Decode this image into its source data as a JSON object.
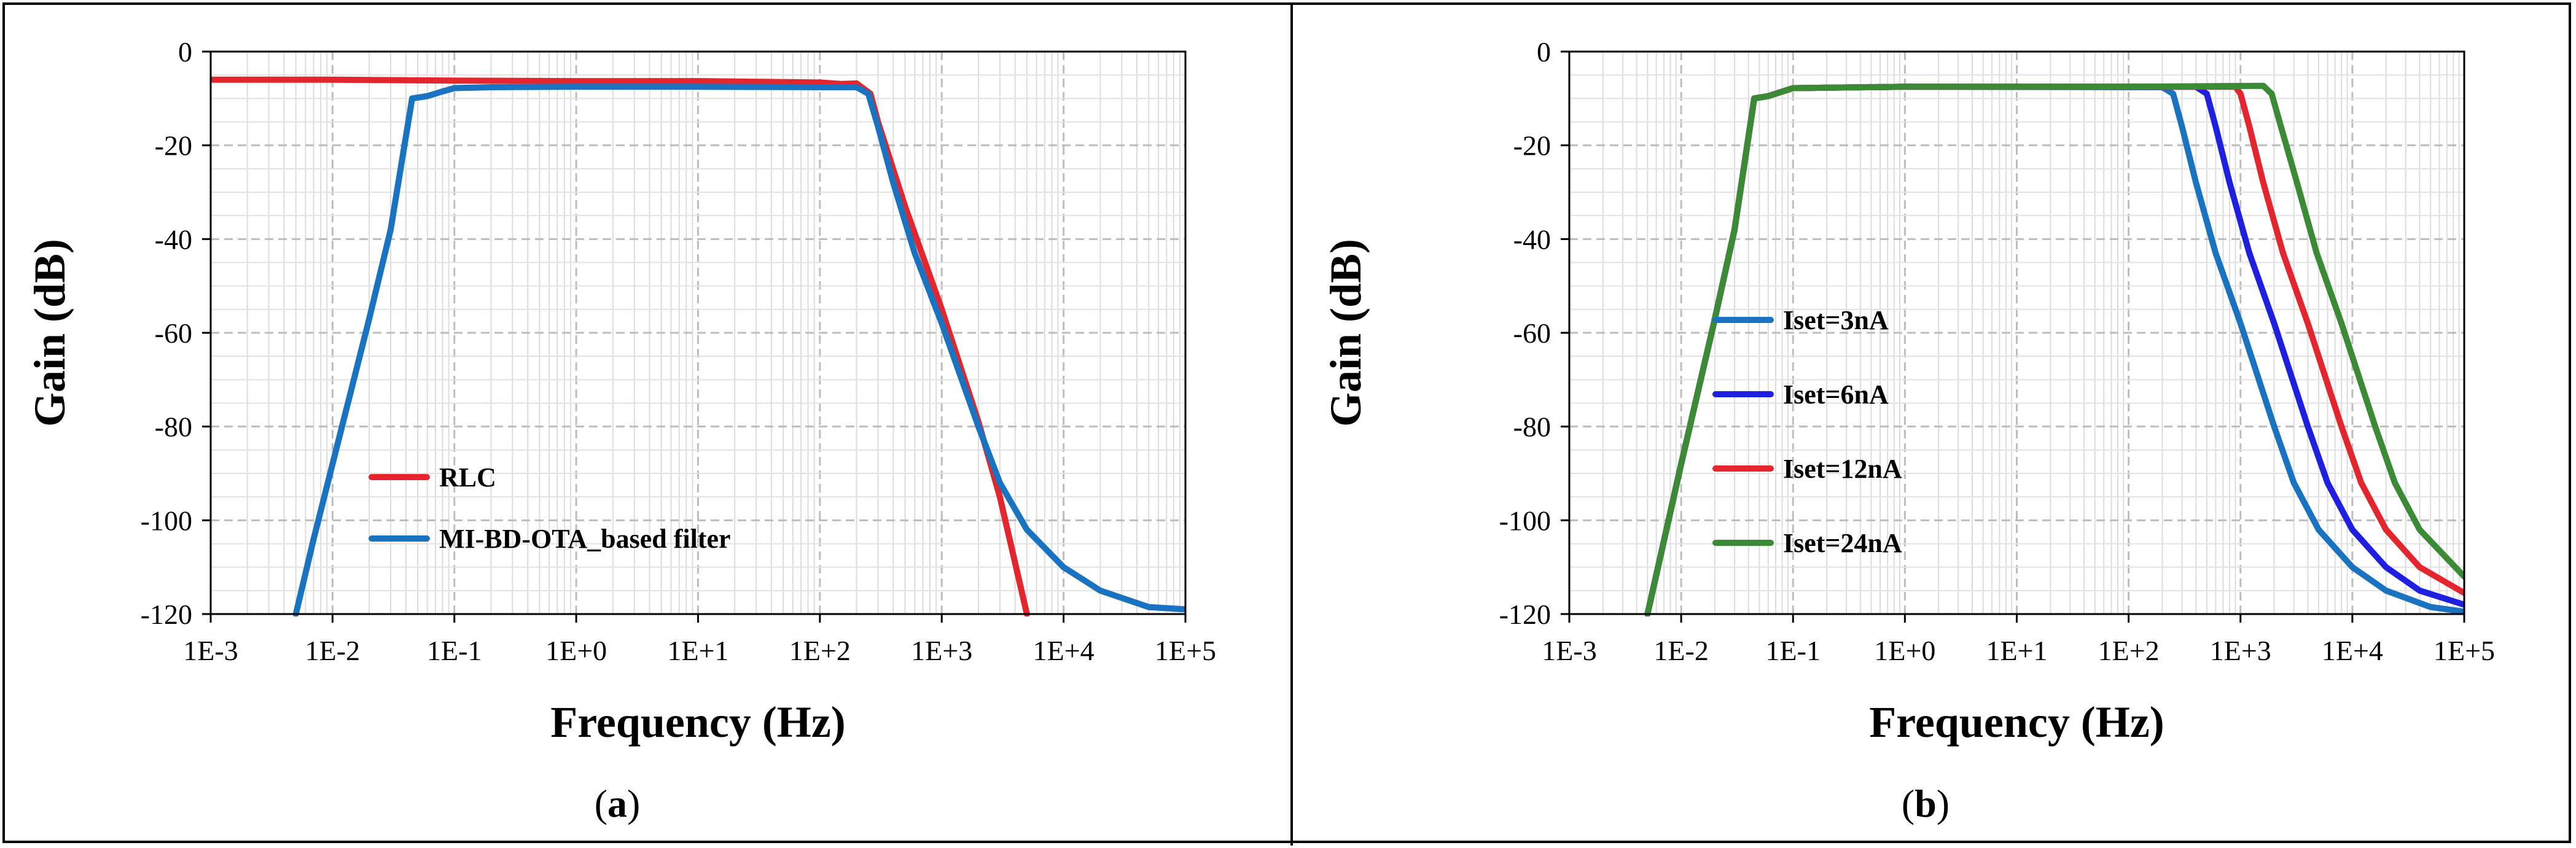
{
  "chart_data": [
    {
      "type": "line",
      "panel_label": "a",
      "xlabel": "Frequency (Hz)",
      "ylabel": "Gain (dB)",
      "x_scale": "log",
      "xlim": [
        0.001,
        100000
      ],
      "ylim": [
        -120,
        0
      ],
      "x_ticks": [
        "1E-3",
        "1E-2",
        "1E-1",
        "1E+0",
        "1E+1",
        "1E+2",
        "1E+3",
        "1E+4",
        "1E+5"
      ],
      "y_ticks": [
        "0",
        "-20",
        "-40",
        "-60",
        "-80",
        "-100",
        "-120"
      ],
      "grid": true,
      "legend_position": "bottom-left",
      "series": [
        {
          "name": "RLC",
          "color": "#e3262d",
          "points": [
            [
              0.001,
              -6
            ],
            [
              0.01,
              -6
            ],
            [
              0.1,
              -6.2
            ],
            [
              1,
              -6.3
            ],
            [
              10,
              -6.3
            ],
            [
              100,
              -6.6
            ],
            [
              150,
              -6.9
            ],
            [
              200,
              -6.8
            ],
            [
              260,
              -9
            ],
            [
              300,
              -15
            ],
            [
              500,
              -33
            ],
            [
              1000,
              -55
            ],
            [
              2000,
              -79
            ],
            [
              3000,
              -95
            ],
            [
              5000,
              -120
            ]
          ]
        },
        {
          "name": "MI-BD-OTA_based filter",
          "color": "#1a73c0",
          "points": [
            [
              0.005,
              -120
            ],
            [
              0.007,
              -104
            ],
            [
              0.01,
              -88
            ],
            [
              0.02,
              -57
            ],
            [
              0.03,
              -38
            ],
            [
              0.045,
              -10
            ],
            [
              0.06,
              -9.5
            ],
            [
              0.08,
              -8.5
            ],
            [
              0.1,
              -7.8
            ],
            [
              0.2,
              -7.6
            ],
            [
              1,
              -7.5
            ],
            [
              10,
              -7.5
            ],
            [
              100,
              -7.6
            ],
            [
              200,
              -7.6
            ],
            [
              250,
              -9
            ],
            [
              300,
              -16
            ],
            [
              400,
              -28
            ],
            [
              600,
              -43
            ],
            [
              1000,
              -58
            ],
            [
              2000,
              -80
            ],
            [
              3000,
              -92
            ],
            [
              5000,
              -102
            ],
            [
              10000,
              -110
            ],
            [
              20000,
              -115
            ],
            [
              50000,
              -118.5
            ],
            [
              100000,
              -119
            ]
          ]
        }
      ]
    },
    {
      "type": "line",
      "panel_label": "b",
      "xlabel": "Frequency (Hz)",
      "ylabel": "Gain (dB)",
      "x_scale": "log",
      "xlim": [
        0.001,
        100000
      ],
      "ylim": [
        -120,
        0
      ],
      "x_ticks": [
        "1E-3",
        "1E-2",
        "1E-1",
        "1E+0",
        "1E+1",
        "1E+2",
        "1E+3",
        "1E+4",
        "1E+5"
      ],
      "y_ticks": [
        "0",
        "-20",
        "-40",
        "-60",
        "-80",
        "-100",
        "-120"
      ],
      "grid": true,
      "legend_position": "left",
      "series": [
        {
          "name": "Iset=3nA",
          "color": "#1a73c0",
          "points": [
            [
              0.005,
              -120
            ],
            [
              0.01,
              -88
            ],
            [
              0.02,
              -57
            ],
            [
              0.03,
              -38
            ],
            [
              0.045,
              -10
            ],
            [
              0.06,
              -9.5
            ],
            [
              0.1,
              -7.8
            ],
            [
              1,
              -7.5
            ],
            [
              100,
              -7.6
            ],
            [
              200,
              -7.6
            ],
            [
              250,
              -9
            ],
            [
              300,
              -16
            ],
            [
              400,
              -28
            ],
            [
              600,
              -43
            ],
            [
              1000,
              -58
            ],
            [
              2000,
              -80
            ],
            [
              3000,
              -92
            ],
            [
              5000,
              -102
            ],
            [
              10000,
              -110
            ],
            [
              20000,
              -115
            ],
            [
              50000,
              -118.5
            ],
            [
              100000,
              -119.5
            ]
          ]
        },
        {
          "name": "Iset=6nA",
          "color": "#1f1fe0",
          "points": [
            [
              0.005,
              -120
            ],
            [
              0.01,
              -88
            ],
            [
              0.02,
              -57
            ],
            [
              0.03,
              -38
            ],
            [
              0.045,
              -10
            ],
            [
              0.06,
              -9.5
            ],
            [
              0.1,
              -7.8
            ],
            [
              1,
              -7.5
            ],
            [
              100,
              -7.5
            ],
            [
              400,
              -7.5
            ],
            [
              500,
              -9
            ],
            [
              600,
              -16
            ],
            [
              800,
              -28
            ],
            [
              1200,
              -43
            ],
            [
              2000,
              -58
            ],
            [
              4000,
              -80
            ],
            [
              6000,
              -92
            ],
            [
              10000,
              -102
            ],
            [
              20000,
              -110
            ],
            [
              40000,
              -115
            ],
            [
              100000,
              -118
            ]
          ]
        },
        {
          "name": "Iset=12nA",
          "color": "#e3262d",
          "points": [
            [
              0.005,
              -120
            ],
            [
              0.01,
              -88
            ],
            [
              0.02,
              -57
            ],
            [
              0.03,
              -38
            ],
            [
              0.045,
              -10
            ],
            [
              0.06,
              -9.5
            ],
            [
              0.1,
              -7.8
            ],
            [
              1,
              -7.5
            ],
            [
              100,
              -7.5
            ],
            [
              900,
              -7.5
            ],
            [
              1000,
              -9
            ],
            [
              1200,
              -16
            ],
            [
              1600,
              -28
            ],
            [
              2400,
              -43
            ],
            [
              4000,
              -58
            ],
            [
              8000,
              -80
            ],
            [
              12000,
              -92
            ],
            [
              20000,
              -102
            ],
            [
              40000,
              -110
            ],
            [
              100000,
              -115.5
            ]
          ]
        },
        {
          "name": "Iset=24nA",
          "color": "#3b8a36",
          "points": [
            [
              0.005,
              -120
            ],
            [
              0.01,
              -88
            ],
            [
              0.02,
              -57
            ],
            [
              0.03,
              -38
            ],
            [
              0.045,
              -10
            ],
            [
              0.06,
              -9.5
            ],
            [
              0.1,
              -7.8
            ],
            [
              1,
              -7.5
            ],
            [
              100,
              -7.5
            ],
            [
              1600,
              -7.3
            ],
            [
              1900,
              -9
            ],
            [
              2300,
              -16
            ],
            [
              3200,
              -28
            ],
            [
              4800,
              -43
            ],
            [
              8000,
              -58
            ],
            [
              16000,
              -80
            ],
            [
              24000,
              -92
            ],
            [
              40000,
              -102
            ],
            [
              100000,
              -112
            ]
          ]
        }
      ]
    }
  ]
}
